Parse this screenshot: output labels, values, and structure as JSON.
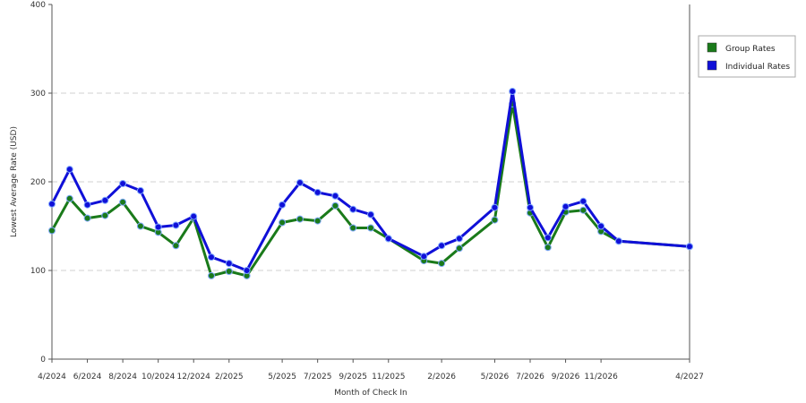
{
  "chart_data": {
    "type": "line",
    "title": "",
    "xlabel": "Month of Check In",
    "ylabel": "Lowest Average Rate (USD)",
    "ylim": [
      0,
      400
    ],
    "yticks": [
      0,
      100,
      200,
      300,
      400
    ],
    "x_months": [
      "4/2024",
      "5/2024",
      "6/2024",
      "7/2024",
      "8/2024",
      "9/2024",
      "10/2024",
      "11/2024",
      "12/2024",
      "1/2025",
      "2/2025",
      "3/2025",
      "5/2025",
      "6/2025",
      "7/2025",
      "8/2025",
      "9/2025",
      "10/2025",
      "11/2025",
      "1/2026",
      "2/2026",
      "3/2026",
      "5/2026",
      "6/2026",
      "7/2026",
      "8/2026",
      "9/2026",
      "10/2026",
      "11/2026",
      "12/2026",
      "4/2027"
    ],
    "x_tick_labels": [
      "4/2024",
      "6/2024",
      "8/2024",
      "10/2024",
      "12/2024",
      "2/2025",
      "5/2025",
      "7/2025",
      "9/2025",
      "11/2025",
      "2/2026",
      "5/2026",
      "7/2026",
      "9/2026",
      "11/2026",
      "4/2027"
    ],
    "grid": "horizontal dashed",
    "legend_position": "right",
    "series": [
      {
        "name": "Group Rates",
        "color": "#1a7a1a",
        "values": [
          145,
          181,
          159,
          162,
          177,
          150,
          143,
          128,
          159,
          94,
          99,
          94,
          154,
          158,
          156,
          173,
          148,
          148,
          136,
          111,
          108,
          125,
          157,
          288,
          165,
          126,
          166,
          168,
          144,
          133,
          127
        ]
      },
      {
        "name": "Individual Rates",
        "color": "#1010d8",
        "values": [
          175,
          214,
          174,
          179,
          198,
          190,
          149,
          151,
          161,
          115,
          108,
          100,
          174,
          199,
          188,
          184,
          169,
          163,
          136,
          116,
          128,
          136,
          171,
          302,
          171,
          137,
          172,
          178,
          150,
          133,
          127
        ]
      }
    ]
  }
}
